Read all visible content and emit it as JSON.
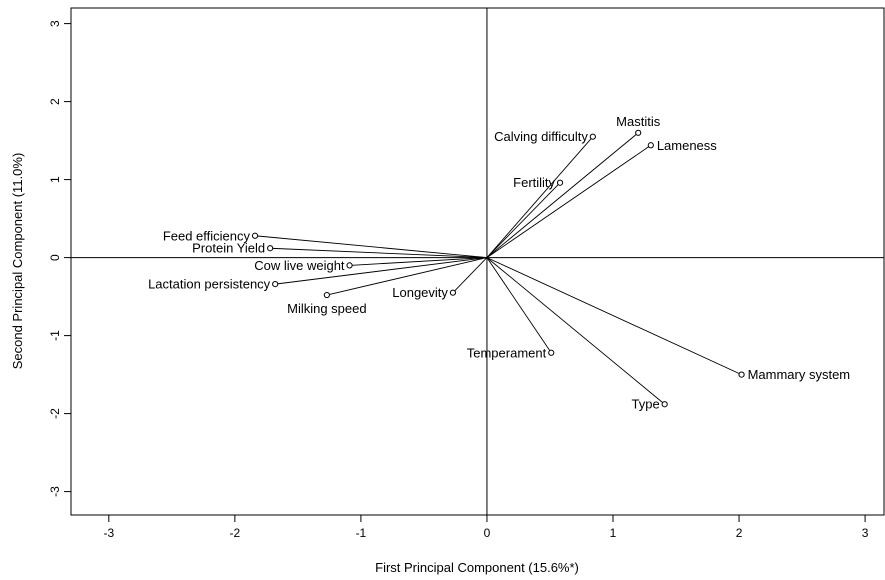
{
  "chart_data": {
    "type": "scatter",
    "subtype": "biplot",
    "xlabel": "First Principal Component (15.6%*)",
    "ylabel": "Second Principal Component (11.0%)",
    "xlim": [
      -3.3,
      3.15
    ],
    "ylim": [
      -3.3,
      3.2
    ],
    "xticks": [
      -3,
      -2,
      -1,
      0,
      1,
      2,
      3
    ],
    "yticks": [
      -3,
      -2,
      -1,
      0,
      1,
      2,
      3
    ],
    "reference_lines": {
      "x": 0,
      "y": 0
    },
    "vectors_from_origin": true,
    "points": [
      {
        "label": "Mastitis",
        "x": 1.2,
        "y": 1.6,
        "label_pos": "above"
      },
      {
        "label": "Calving difficulty",
        "x": 0.84,
        "y": 1.55,
        "label_pos": "left"
      },
      {
        "label": "Lameness",
        "x": 1.3,
        "y": 1.44,
        "label_pos": "right"
      },
      {
        "label": "Fertility",
        "x": 0.58,
        "y": 0.96,
        "label_pos": "left"
      },
      {
        "label": "Feed efficiency",
        "x": -1.84,
        "y": 0.28,
        "label_pos": "left"
      },
      {
        "label": "Protein Yield",
        "x": -1.72,
        "y": 0.12,
        "label_pos": "left"
      },
      {
        "label": "Cow live weight",
        "x": -1.09,
        "y": -0.1,
        "label_pos": "left"
      },
      {
        "label": "Lactation persistency",
        "x": -1.68,
        "y": -0.34,
        "label_pos": "left"
      },
      {
        "label": "Longevity",
        "x": -0.27,
        "y": -0.45,
        "label_pos": "left"
      },
      {
        "label": "Milking speed",
        "x": -1.27,
        "y": -0.48,
        "label_pos": "below"
      },
      {
        "label": "Temperament",
        "x": 0.51,
        "y": -1.22,
        "label_pos": "left"
      },
      {
        "label": "Mammary system",
        "x": 2.02,
        "y": -1.5,
        "label_pos": "right"
      },
      {
        "label": "Type",
        "x": 1.41,
        "y": -1.88,
        "label_pos": "left"
      }
    ]
  }
}
